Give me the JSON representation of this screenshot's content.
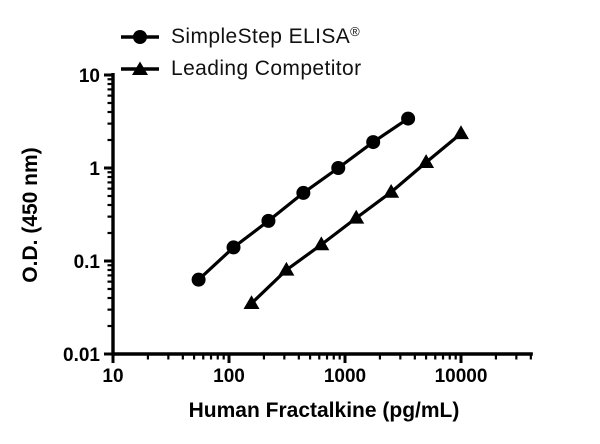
{
  "chart_data": {
    "type": "line",
    "title": "",
    "xlabel": "Human Fractalkine (pg/mL)",
    "ylabel": "O.D. (450 nm)",
    "x_scale": "log",
    "y_scale": "log",
    "xlim": [
      10,
      40000
    ],
    "ylim": [
      0.01,
      10
    ],
    "x_ticks": [
      10,
      100,
      1000,
      10000
    ],
    "x_tick_labels": [
      "10",
      "100",
      "1000",
      "10000"
    ],
    "y_ticks": [
      0.01,
      0.1,
      1,
      10
    ],
    "y_tick_labels": [
      "0.01",
      "0.1",
      "1",
      "10"
    ],
    "grid": false,
    "legend_position": "top-left",
    "background_color": "#ffffff",
    "axis_color": "#000000",
    "series": [
      {
        "name": "SimpleStep ELISA®",
        "legend_main": "SimpleStep ELISA",
        "legend_sup": "®",
        "marker": "circle",
        "color": "#000000",
        "x": [
          54.7,
          109.4,
          218.8,
          437.5,
          875,
          1750,
          3500
        ],
        "y": [
          0.063,
          0.14,
          0.27,
          0.54,
          1.0,
          1.9,
          3.4
        ]
      },
      {
        "name": "Leading Competitor",
        "legend_main": "Leading Competitor",
        "legend_sup": "",
        "marker": "triangle",
        "color": "#000000",
        "x": [
          156.3,
          312.5,
          625,
          1250,
          2500,
          5000,
          10000
        ],
        "y": [
          0.035,
          0.08,
          0.15,
          0.29,
          0.55,
          1.15,
          2.35
        ]
      }
    ]
  }
}
